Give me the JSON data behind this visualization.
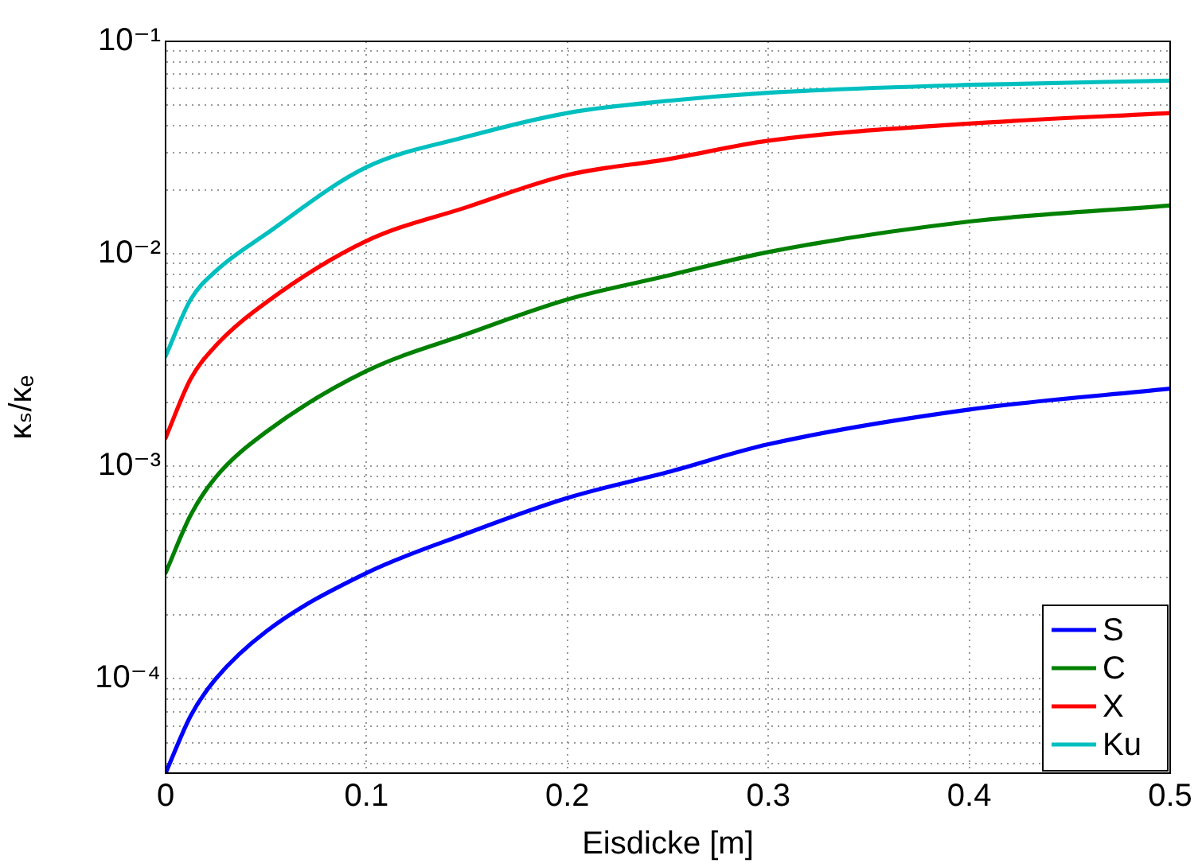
{
  "chart_data": {
    "type": "line",
    "xlabel": "Eisdicke [m]",
    "ylabel": "κₛ/κₑ",
    "x": [
      0,
      0.0125,
      0.025,
      0.05,
      0.1,
      0.15,
      0.2,
      0.25,
      0.3,
      0.4,
      0.5
    ],
    "series": [
      {
        "name": "S",
        "color": "#0000ff",
        "values": [
          3.6e-05,
          6.7e-05,
          0.0001,
          0.000167,
          0.000315,
          0.000484,
          0.00071,
          0.00094,
          0.00127,
          0.00185,
          0.00232
        ]
      },
      {
        "name": "C",
        "color": "#008000",
        "values": [
          0.000315,
          0.00059,
          0.00089,
          0.00145,
          0.00281,
          0.0042,
          0.0061,
          0.0079,
          0.0102,
          0.0142,
          0.0169
        ]
      },
      {
        "name": "X",
        "color": "#ff0000",
        "values": [
          0.00136,
          0.00258,
          0.0037,
          0.0059,
          0.0115,
          0.0166,
          0.0235,
          0.0279,
          0.0341,
          0.041,
          0.046
        ]
      },
      {
        "name": "Ku",
        "color": "#00bfbf",
        "values": [
          0.0033,
          0.0061,
          0.0083,
          0.0124,
          0.0256,
          0.0356,
          0.046,
          0.0525,
          0.0573,
          0.0624,
          0.0653
        ]
      }
    ],
    "log": "y",
    "xlim": [
      0,
      0.5
    ],
    "xticks": [
      0,
      0.1,
      0.2,
      0.3,
      0.4,
      0.5
    ],
    "ylim": [
      3.6e-05,
      0.1
    ],
    "yticks": [
      {
        "value": 4e-05,
        "label": null
      },
      {
        "value": 5e-05,
        "label": null
      },
      {
        "value": 6e-05,
        "label": null
      },
      {
        "value": 7e-05,
        "label": null
      },
      {
        "value": 8e-05,
        "label": null
      },
      {
        "value": 9e-05,
        "label": null
      },
      {
        "value": 0.0001,
        "label": "10⁻⁴"
      },
      {
        "value": 0.0002,
        "label": null
      },
      {
        "value": 0.0003,
        "label": null
      },
      {
        "value": 0.0004,
        "label": null
      },
      {
        "value": 0.0005,
        "label": null
      },
      {
        "value": 0.0006,
        "label": null
      },
      {
        "value": 0.0007,
        "label": null
      },
      {
        "value": 0.0008,
        "label": null
      },
      {
        "value": 0.0009,
        "label": null
      },
      {
        "value": 0.001,
        "label": "10⁻³"
      },
      {
        "value": 0.002,
        "label": null
      },
      {
        "value": 0.003,
        "label": null
      },
      {
        "value": 0.004,
        "label": null
      },
      {
        "value": 0.005,
        "label": null
      },
      {
        "value": 0.006,
        "label": null
      },
      {
        "value": 0.007,
        "label": null
      },
      {
        "value": 0.008,
        "label": null
      },
      {
        "value": 0.009,
        "label": null
      },
      {
        "value": 0.01,
        "label": "10⁻²"
      },
      {
        "value": 0.02,
        "label": null
      },
      {
        "value": 0.03,
        "label": null
      },
      {
        "value": 0.04,
        "label": null
      },
      {
        "value": 0.05,
        "label": null
      },
      {
        "value": 0.06,
        "label": null
      },
      {
        "value": 0.07,
        "label": null
      },
      {
        "value": 0.08,
        "label": null
      },
      {
        "value": 0.09,
        "label": null
      },
      {
        "value": 0.1,
        "label": "10⁻¹"
      }
    ],
    "grid": true,
    "legend": "bottom right",
    "line_style": "solid",
    "marker": "none"
  }
}
